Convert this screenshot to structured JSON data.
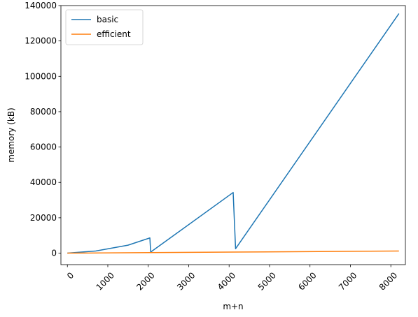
{
  "chart_data": {
    "type": "line",
    "xlabel": "m+n",
    "ylabel": "memory (kB)",
    "xlim": [
      -160,
      8360
    ],
    "ylim": [
      -6500,
      140000
    ],
    "x_ticks": [
      0,
      1000,
      2000,
      3000,
      4000,
      5000,
      6000,
      7000,
      8000
    ],
    "x_tick_labels": [
      "0",
      "1000",
      "2000",
      "3000",
      "4000",
      "5000",
      "6000",
      "7000",
      "8000"
    ],
    "y_ticks": [
      0,
      20000,
      40000,
      60000,
      80000,
      100000,
      120000,
      140000
    ],
    "y_tick_labels": [
      "0",
      "20000",
      "40000",
      "60000",
      "80000",
      "100000",
      "120000",
      "140000"
    ],
    "grid": false,
    "legend_position": "top-left",
    "series": [
      {
        "name": "basic",
        "color": "#1f77b4",
        "x": [
          0,
          700,
          1500,
          2040,
          2060,
          4100,
          4160,
          8200
        ],
        "y": [
          0,
          1200,
          4500,
          8600,
          600,
          34300,
          2500,
          135500
        ]
      },
      {
        "name": "efficient",
        "color": "#ff7f0e",
        "x": [
          0,
          2040,
          4100,
          8200
        ],
        "y": [
          0,
          300,
          600,
          1200
        ]
      }
    ]
  }
}
